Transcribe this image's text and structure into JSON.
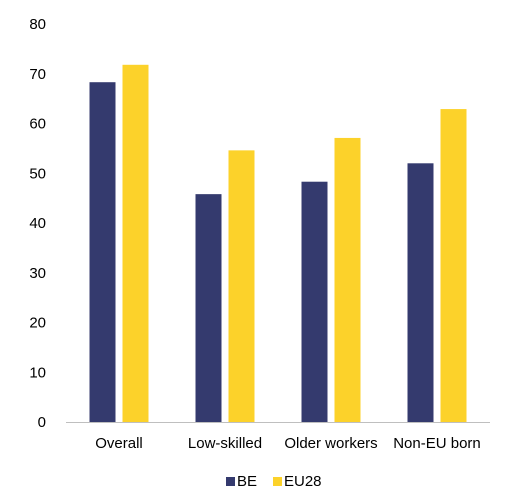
{
  "chart_data": {
    "type": "bar",
    "categories": [
      "Overall",
      "Low-skilled",
      "Older workers",
      "Non-EU born"
    ],
    "series": [
      {
        "name": "BE",
        "values": [
          68.3,
          45.8,
          48.3,
          52.0
        ],
        "color": "#343a6e"
      },
      {
        "name": "EU28",
        "values": [
          71.8,
          54.6,
          57.1,
          62.9
        ],
        "color": "#fcd22a"
      }
    ],
    "yticks": [
      "0",
      "10",
      "20",
      "30",
      "40",
      "50",
      "60",
      "70",
      "80"
    ],
    "ylim": [
      0,
      80
    ],
    "grid": false,
    "legend_position": "bottom"
  }
}
